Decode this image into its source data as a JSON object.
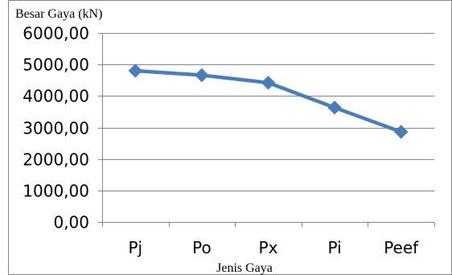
{
  "chart_data": {
    "type": "line",
    "categories": [
      "Pj",
      "Po",
      "Px",
      "Pi",
      "Peef"
    ],
    "series": [
      {
        "values": [
          4800,
          4660,
          4420,
          3630,
          2860
        ]
      }
    ],
    "ylabel": "Besar Gaya (kN)",
    "xlabel": "Jenis Gaya",
    "ylim": [
      0,
      6000
    ],
    "yticks": [
      0,
      1000,
      2000,
      3000,
      4000,
      5000,
      6000
    ],
    "ytick_labels": [
      "0,00",
      "1000,00",
      "2000,00",
      "3000,00",
      "4000,00",
      "5000,00",
      "6000,00"
    ],
    "grid": true,
    "legend": "none",
    "colors": {
      "line": "#4A7EBB",
      "marker": "#4A7EBB",
      "grid": "#868686",
      "axis": "#868686",
      "border": "#868686"
    }
  }
}
